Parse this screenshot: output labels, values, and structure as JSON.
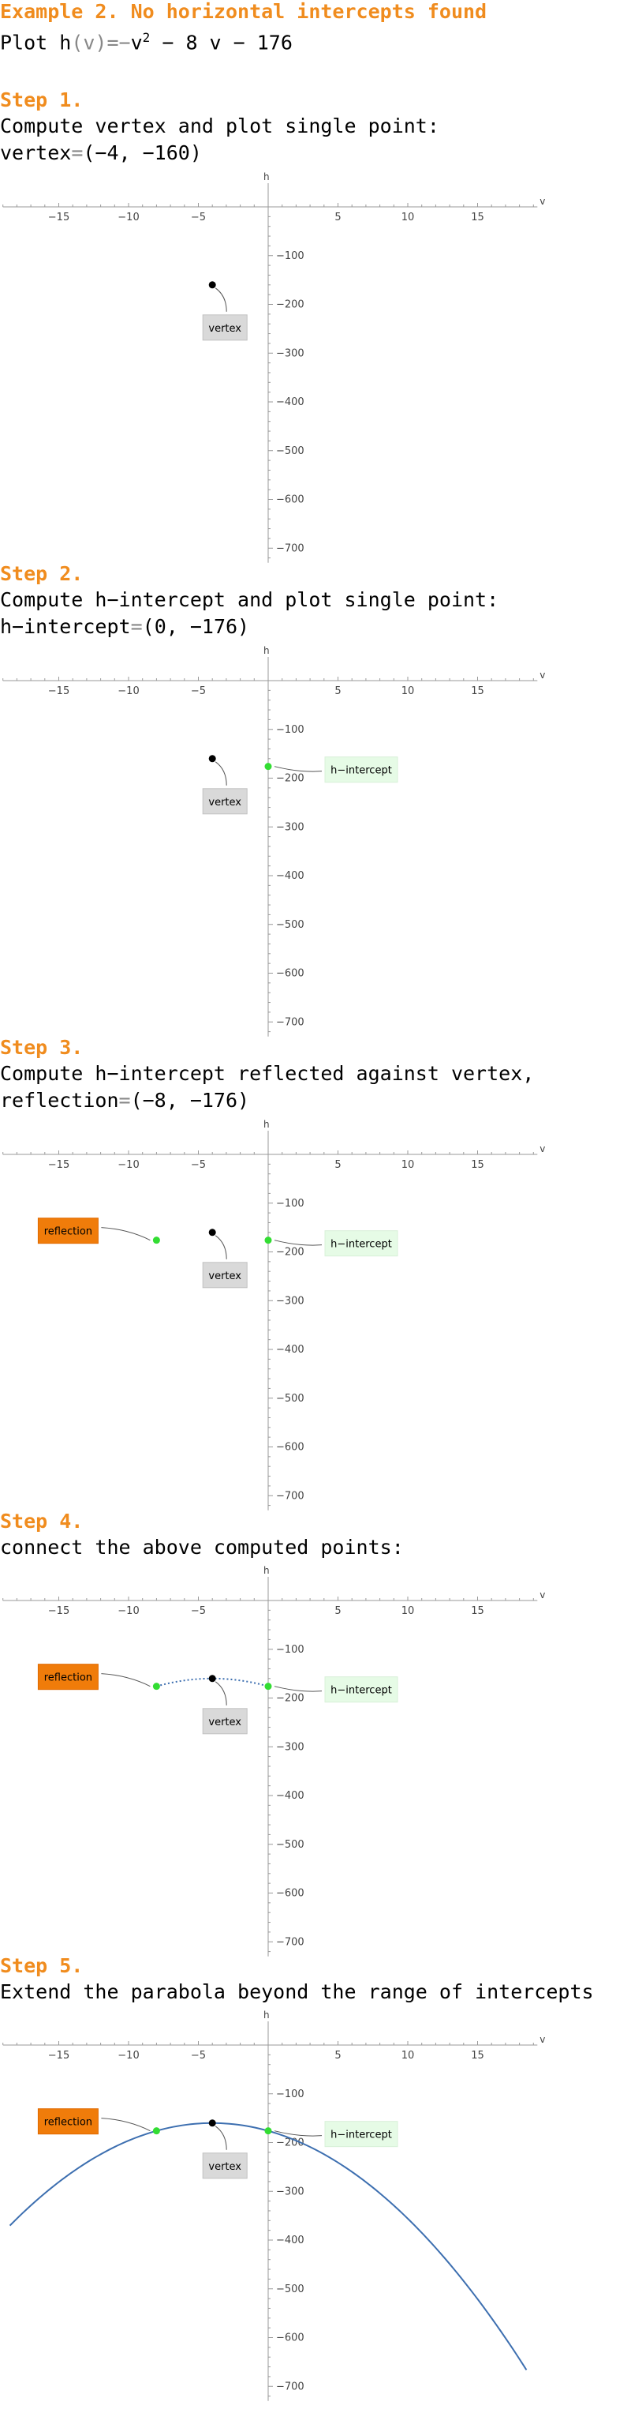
{
  "heading": "Example 2. No horizontal intercepts found",
  "plot_prefix": "Plot h",
  "plot_func_args": "(v)",
  "plot_eq_sign": "=",
  "plot_minus": "−",
  "plot_v": "v",
  "plot_exp": "2",
  "plot_middle": " − 8 v − 176",
  "colors": {
    "heading": "#f08c1e",
    "vertex_point": "#000000",
    "intercept_point": "#33dd33",
    "parabola": "#3d6fb0",
    "vertex_label_bg": "#d9d9d9",
    "intercept_label_bg": "#e6fbe6",
    "reflection_label_bg": "#f07c0a"
  },
  "steps": [
    {
      "label": "Step 1.",
      "desc": "Compute vertex and plot single point:",
      "value_name": "vertex",
      "value_coords": "(−4, −160)"
    },
    {
      "label": "Step 2.",
      "desc": "Compute h−intercept and plot single point:",
      "value_name": "h−intercept",
      "value_coords": "(0, −176)"
    },
    {
      "label": "Step 3.",
      "desc": "Compute h−intercept reflected against vertex,",
      "value_name": "reflection",
      "value_coords": "(−8, −176)"
    },
    {
      "label": "Step 4.",
      "desc": "connect the above computed points:",
      "value_name": "",
      "value_coords": ""
    },
    {
      "label": "Step 5.",
      "desc": "Extend the parabola beyond the range of intercepts",
      "value_name": "",
      "value_coords": ""
    }
  ],
  "chart_data": [
    {
      "type": "scatter",
      "xlabel": "v",
      "ylabel": "h",
      "xlim": [
        -19,
        19
      ],
      "ylim": [
        -730,
        20
      ],
      "xticks": [
        "−15",
        "−10",
        "−5",
        "5",
        "10",
        "15"
      ],
      "yticks": [
        "−100",
        "−200",
        "−300",
        "−400",
        "−500",
        "−600",
        "−700"
      ],
      "points": [
        {
          "name": "vertex",
          "x": -4,
          "y": -160
        }
      ],
      "labels": [
        "vertex"
      ]
    },
    {
      "type": "scatter",
      "xlabel": "v",
      "ylabel": "h",
      "xlim": [
        -19,
        19
      ],
      "ylim": [
        -730,
        20
      ],
      "xticks": [
        "−15",
        "−10",
        "−5",
        "5",
        "10",
        "15"
      ],
      "yticks": [
        "−100",
        "−200",
        "−300",
        "−400",
        "−500",
        "−600",
        "−700"
      ],
      "points": [
        {
          "name": "vertex",
          "x": -4,
          "y": -160
        },
        {
          "name": "h-intercept",
          "x": 0,
          "y": -176
        }
      ],
      "labels": [
        "vertex",
        "h−intercept"
      ]
    },
    {
      "type": "scatter",
      "xlabel": "v",
      "ylabel": "h",
      "xlim": [
        -19,
        19
      ],
      "ylim": [
        -730,
        20
      ],
      "xticks": [
        "−15",
        "−10",
        "−5",
        "5",
        "10",
        "15"
      ],
      "yticks": [
        "−100",
        "−200",
        "−300",
        "−400",
        "−500",
        "−600",
        "−700"
      ],
      "points": [
        {
          "name": "vertex",
          "x": -4,
          "y": -160
        },
        {
          "name": "h-intercept",
          "x": 0,
          "y": -176
        },
        {
          "name": "reflection",
          "x": -8,
          "y": -176
        }
      ],
      "labels": [
        "vertex",
        "h−intercept",
        "reflection"
      ]
    },
    {
      "type": "line",
      "xlabel": "v",
      "ylabel": "h",
      "xlim": [
        -19,
        19
      ],
      "ylim": [
        -730,
        20
      ],
      "xticks": [
        "−15",
        "−10",
        "−5",
        "5",
        "10",
        "15"
      ],
      "yticks": [
        "−100",
        "−200",
        "−300",
        "−400",
        "−500",
        "−600",
        "−700"
      ],
      "points": [
        {
          "name": "vertex",
          "x": -4,
          "y": -160
        },
        {
          "name": "h-intercept",
          "x": 0,
          "y": -176
        },
        {
          "name": "reflection",
          "x": -8,
          "y": -176
        }
      ],
      "labels": [
        "vertex",
        "h−intercept",
        "reflection"
      ],
      "curve": {
        "style": "dotted",
        "x_range": [
          -8,
          0
        ],
        "a": -1,
        "b": -8,
        "c": -176
      }
    },
    {
      "type": "line",
      "xlabel": "v",
      "ylabel": "h",
      "xlim": [
        -19,
        19
      ],
      "ylim": [
        -730,
        20
      ],
      "xticks": [
        "−15",
        "−10",
        "−5",
        "5",
        "10",
        "15"
      ],
      "yticks": [
        "−100",
        "−200",
        "−300",
        "−400",
        "−500",
        "−600",
        "−700"
      ],
      "points": [
        {
          "name": "vertex",
          "x": -4,
          "y": -160
        },
        {
          "name": "h-intercept",
          "x": 0,
          "y": -176
        },
        {
          "name": "reflection",
          "x": -8,
          "y": -176
        }
      ],
      "labels": [
        "vertex",
        "h−intercept",
        "reflection"
      ],
      "curve": {
        "style": "solid",
        "x_range": [
          -18.5,
          18.5
        ],
        "a": -1,
        "b": -8,
        "c": -176
      }
    }
  ]
}
